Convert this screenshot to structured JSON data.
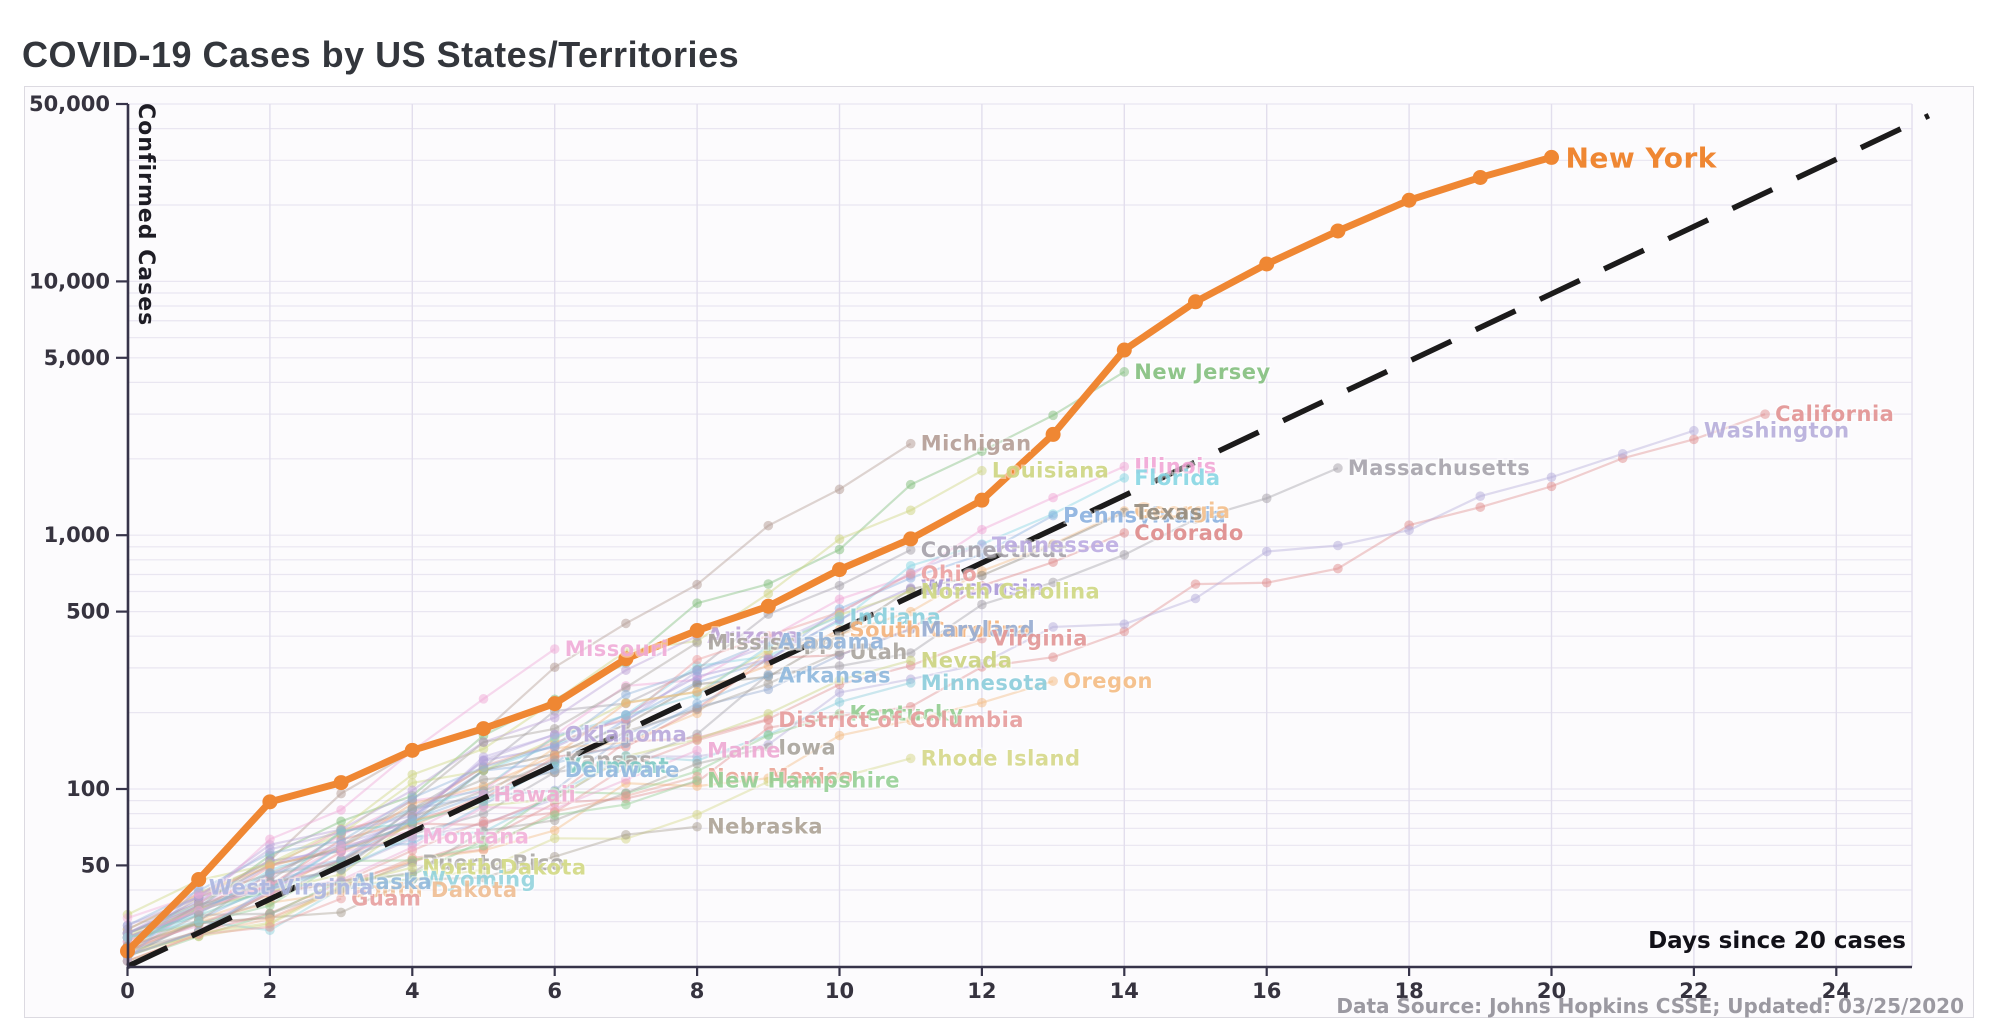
{
  "page": {
    "title": "COVID-19 Cases by US States/Territories"
  },
  "chart_data": {
    "type": "line",
    "title": "COVID-19 Cases by US States/Territories",
    "xlabel": "Days since 20 cases",
    "ylabel": "Confirmed Cases",
    "source_note": "Data Source: Johns Hopkins CSSE; Updated: 03/25/2020",
    "y_scale": "log",
    "x_range": [
      0,
      25.1
    ],
    "y_range": [
      20,
      50000
    ],
    "grid": true,
    "x_ticks": [
      "0",
      "2",
      "4",
      "6",
      "8",
      "10",
      "12",
      "14",
      "16",
      "18",
      "20",
      "22",
      "24"
    ],
    "x_tick_values": [
      0,
      2,
      4,
      6,
      8,
      10,
      12,
      14,
      16,
      18,
      20,
      22,
      24
    ],
    "y_ticks": [
      {
        "label": "50,000",
        "value": 50000
      },
      {
        "label": "10,000",
        "value": 10000
      },
      {
        "label": "5,000",
        "value": 5000
      },
      {
        "label": "1,000",
        "value": 1000
      },
      {
        "label": "500",
        "value": 500
      },
      {
        "label": "100",
        "value": 100
      },
      {
        "label": "50",
        "value": 50
      }
    ],
    "reference_line": {
      "style": "dashed",
      "color": "#1c1b1b",
      "points": [
        {
          "day": 0,
          "cases": 20
        },
        {
          "day": 25.3,
          "cases": 45000
        }
      ]
    },
    "highlight_series": {
      "name": "New York",
      "color": "#ef8733",
      "x": [
        0,
        1,
        2,
        3,
        4,
        5,
        6,
        7,
        8,
        9,
        10,
        11,
        12,
        13,
        14,
        15,
        16,
        17,
        18,
        19,
        20
      ],
      "values": [
        23,
        44,
        89,
        106,
        142,
        173,
        217,
        326,
        421,
        525,
        732,
        967,
        1374,
        2495,
        5365,
        8310,
        11710,
        15800,
        20880,
        25680,
        30800
      ]
    },
    "series": [
      {
        "name": "New Jersey",
        "color": "#7fbd7a",
        "days": 14,
        "start": 24,
        "end": 4402
      },
      {
        "name": "California",
        "color": "#e08e8e",
        "days": 23,
        "start": 22,
        "end": 2998
      },
      {
        "name": "Washington",
        "color": "#b4abd9",
        "days": 22,
        "start": 27,
        "end": 2580
      },
      {
        "name": "Michigan",
        "color": "#b29a92",
        "days": 11,
        "start": 25,
        "end": 2294
      },
      {
        "name": "Massachusetts",
        "color": "#a39fa8",
        "days": 17,
        "start": 23,
        "end": 1838
      },
      {
        "name": "Illinois",
        "color": "#f0a3d4",
        "days": 14,
        "start": 25,
        "end": 1865
      },
      {
        "name": "Florida",
        "color": "#84d5e2",
        "days": 14,
        "start": 24,
        "end": 1682
      },
      {
        "name": "Louisiana",
        "color": "#ccd47d",
        "days": 12,
        "start": 26,
        "end": 1795
      },
      {
        "name": "Pennsylvania",
        "color": "#88aede",
        "days": 13,
        "start": 22,
        "end": 1195
      },
      {
        "name": "Georgia",
        "color": "#f2bc86",
        "days": 14,
        "start": 23,
        "end": 1247
      },
      {
        "name": "Texas",
        "color": "#8f887b",
        "days": 14,
        "start": 27,
        "end": 1229
      },
      {
        "name": "Colorado",
        "color": "#dd8686",
        "days": 14,
        "start": 26,
        "end": 1021
      },
      {
        "name": "Connecticut",
        "color": "#a29da6",
        "days": 11,
        "start": 24,
        "end": 875
      },
      {
        "name": "Tennessee",
        "color": "#b9a9e0",
        "days": 12,
        "start": 26,
        "end": 916
      },
      {
        "name": "Ohio",
        "color": "#eb9c9c",
        "days": 11,
        "start": 26,
        "end": 704
      },
      {
        "name": "Wisconsin",
        "color": "#a795d6",
        "days": 11,
        "start": 27,
        "end": 620
      },
      {
        "name": "North Carolina",
        "color": "#cdd67e",
        "days": 11,
        "start": 32,
        "end": 600
      },
      {
        "name": "Indiana",
        "color": "#85cddb",
        "days": 10,
        "start": 24,
        "end": 477
      },
      {
        "name": "South Carolina",
        "color": "#f2af76",
        "days": 10,
        "start": 28,
        "end": 424
      },
      {
        "name": "Maryland",
        "color": "#93a9cf",
        "days": 11,
        "start": 26,
        "end": 425
      },
      {
        "name": "Virginia",
        "color": "#e09292",
        "days": 12,
        "start": 27,
        "end": 391
      },
      {
        "name": "Utah",
        "color": "#a7a29b",
        "days": 10,
        "start": 28,
        "end": 346
      },
      {
        "name": "Nevada",
        "color": "#c9d17b",
        "days": 11,
        "start": 26,
        "end": 321
      },
      {
        "name": "Minnesota",
        "color": "#87cbd9",
        "days": 11,
        "start": 27,
        "end": 262
      },
      {
        "name": "Oregon",
        "color": "#f4ba80",
        "days": 13,
        "start": 24,
        "end": 266
      },
      {
        "name": "Arizona",
        "color": "#bb9fd6",
        "days": 8,
        "start": 27,
        "end": 401
      },
      {
        "name": "Mississippi",
        "color": "#a6a09a",
        "days": 8,
        "start": 22,
        "end": 377
      },
      {
        "name": "Alabama",
        "color": "#8fb2da",
        "days": 9,
        "start": 29,
        "end": 381
      },
      {
        "name": "Missouri",
        "color": "#efa8d6",
        "days": 6,
        "start": 22,
        "end": 356
      },
      {
        "name": "Arkansas",
        "color": "#8ab5dc",
        "days": 9,
        "start": 22,
        "end": 280
      },
      {
        "name": "Kentucky",
        "color": "#8fcb8d",
        "days": 10,
        "start": 21,
        "end": 198
      },
      {
        "name": "District of Columbia",
        "color": "#e59898",
        "days": 9,
        "start": 22,
        "end": 187
      },
      {
        "name": "Iowa",
        "color": "#a5a099",
        "days": 9,
        "start": 23,
        "end": 146
      },
      {
        "name": "Maine",
        "color": "#eda6d2",
        "days": 8,
        "start": 24,
        "end": 142
      },
      {
        "name": "Rhode Island",
        "color": "#d4d685",
        "days": 11,
        "start": 23,
        "end": 132
      },
      {
        "name": "New Mexico",
        "color": "#e8a092",
        "days": 8,
        "start": 23,
        "end": 112
      },
      {
        "name": "New Hampshire",
        "color": "#92ce92",
        "days": 8,
        "start": 26,
        "end": 108
      },
      {
        "name": "Nebraska",
        "color": "#aa9f92",
        "days": 8,
        "start": 24,
        "end": 71
      },
      {
        "name": "Oklahoma",
        "color": "#b6a5da",
        "days": 6,
        "start": 29,
        "end": 164
      },
      {
        "name": "Kansas",
        "color": "#a7a3a0",
        "days": 6,
        "start": 24,
        "end": 130
      },
      {
        "name": "Vermont",
        "color": "#79c7c2",
        "days": 6,
        "start": 26,
        "end": 123
      },
      {
        "name": "Delaware",
        "color": "#90b6de",
        "days": 6,
        "start": 26,
        "end": 119
      },
      {
        "name": "Hawaii",
        "color": "#efa9d0",
        "days": 5,
        "start": 26,
        "end": 95
      },
      {
        "name": "Montana",
        "color": "#f1aed8",
        "days": 4,
        "start": 31,
        "end": 65
      },
      {
        "name": "Puerto Rico",
        "color": "#a8a5a2",
        "days": 4,
        "start": 23,
        "end": 51
      },
      {
        "name": "North Dakota",
        "color": "#d0d77f",
        "days": 4,
        "start": 22,
        "end": 49
      },
      {
        "name": "Wyoming",
        "color": "#8fd2dc",
        "days": 4,
        "start": 26,
        "end": 44
      },
      {
        "name": "South Dakota",
        "color": "#eebb90",
        "days": 3,
        "start": 21,
        "end": 40
      },
      {
        "name": "Alaska",
        "color": "#8eb6d9",
        "days": 3,
        "start": 22,
        "end": 43
      },
      {
        "name": "Guam",
        "color": "#e69c9c",
        "days": 3,
        "start": 21,
        "end": 37
      },
      {
        "name": "West Virginia",
        "color": "#aab4e0",
        "days": 1,
        "start": 21,
        "end": 41
      }
    ]
  },
  "colors": {
    "highlight": "#ef8733",
    "axis": "#37344a",
    "grid_h": "#e9e6f1",
    "grid_v": "#e2deed",
    "tick_text": "#36333f",
    "title_text": "#33363c",
    "source_text": "#9b99a1"
  }
}
